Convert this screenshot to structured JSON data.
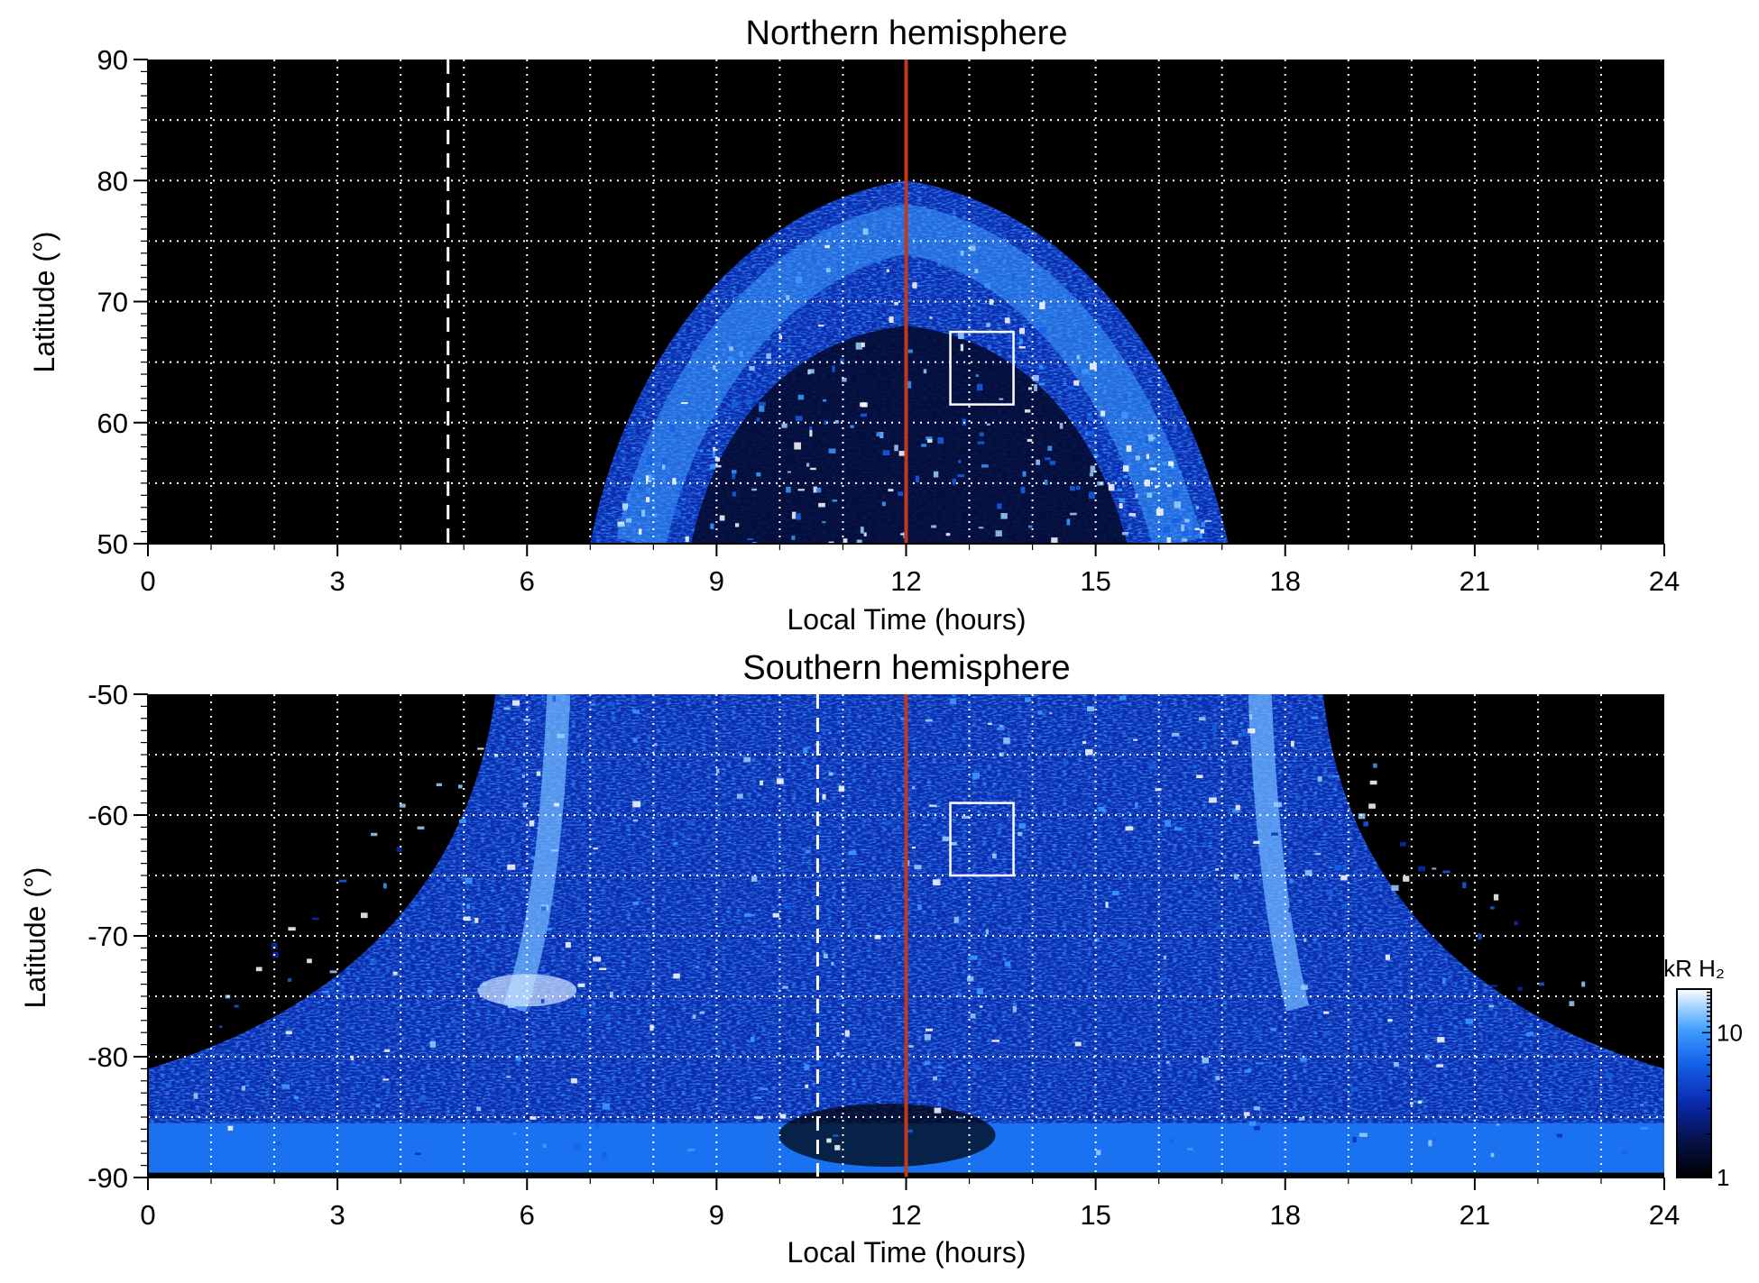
{
  "chart_data": [
    {
      "type": "heatmap",
      "title": "Northern hemisphere",
      "xlabel": "Local Time (hours)",
      "ylabel": "Latitude (°)",
      "xlim": [
        0,
        24
      ],
      "ylim": [
        50,
        90
      ],
      "xticks": [
        0,
        3,
        6,
        9,
        12,
        15,
        18,
        21,
        24
      ],
      "yticks": [
        50,
        60,
        70,
        80,
        90
      ],
      "grid": true,
      "grid_x_step": 1,
      "grid_y_step": 5,
      "coverage": "emission region spans about 7 to 17 h LT, from 50° up to about 80° latitude at 12 h",
      "features": [
        {
          "kind": "vertical-line",
          "x": 12,
          "color": "#c0391b",
          "style": "solid"
        },
        {
          "kind": "vertical-line",
          "x": 4.75,
          "color": "#ffffff",
          "style": "dashed"
        },
        {
          "kind": "box",
          "x": [
            12.7,
            13.7
          ],
          "y": [
            61.5,
            67.5
          ],
          "color": "#ffffff"
        }
      ],
      "bands": [
        {
          "description": "auroral oval",
          "lat_center_at_noon": 72.5,
          "lat_range_at_noon": [
            68,
            78
          ]
        }
      ]
    },
    {
      "type": "heatmap",
      "title": "Southern hemisphere",
      "xlabel": "Local Time (hours)",
      "ylabel": "Latitude (°)",
      "xlim": [
        0,
        24
      ],
      "ylim": [
        -90,
        -50
      ],
      "xticks": [
        0,
        3,
        6,
        9,
        12,
        15,
        18,
        21,
        24
      ],
      "yticks": [
        -90,
        -80,
        -70,
        -60,
        -50
      ],
      "grid": true,
      "grid_x_step": 1,
      "grid_y_step": 5,
      "coverage": "emission region widens from about 5.5–18.5 h LT at -50° to full coverage below about -81°",
      "features": [
        {
          "kind": "vertical-line",
          "x": 12,
          "color": "#c0391b",
          "style": "solid"
        },
        {
          "kind": "vertical-line",
          "x": 10.6,
          "color": "#ffffff",
          "style": "dashed"
        },
        {
          "kind": "box",
          "x": [
            12.7,
            13.7
          ],
          "y": [
            -65,
            -59
          ],
          "color": "#ffffff"
        }
      ],
      "bands": [
        {
          "description": "bright arc dawn side",
          "x_at_minus50": 6.5,
          "x_at_minus75": 6.0
        },
        {
          "description": "bright arc dusk side",
          "x_at_minus50": 17.6,
          "x_at_minus75": 18.0
        }
      ]
    }
  ],
  "colorbar": {
    "label": "kR H₂",
    "scale": "log",
    "range": [
      1,
      20
    ],
    "ticks": [
      1,
      10
    ],
    "colors": [
      "#000000",
      "#05124a",
      "#0a2bb0",
      "#1560e8",
      "#3d9cff",
      "#9fd0ff",
      "#ffffff"
    ]
  }
}
